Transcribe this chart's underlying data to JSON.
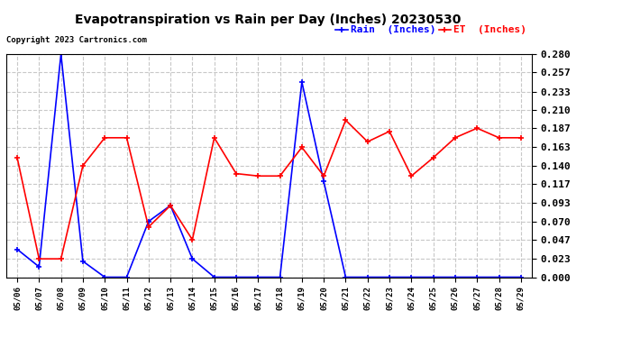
{
  "title": "Evapotranspiration vs Rain per Day (Inches) 20230530",
  "copyright": "Copyright 2023 Cartronics.com",
  "legend_rain": "Rain  (Inches)",
  "legend_et": "ET  (Inches)",
  "dates": [
    "05/06",
    "05/07",
    "05/08",
    "05/09",
    "05/10",
    "05/11",
    "05/12",
    "05/13",
    "05/14",
    "05/15",
    "05/16",
    "05/17",
    "05/18",
    "05/19",
    "05/20",
    "05/21",
    "05/22",
    "05/23",
    "05/24",
    "05/25",
    "05/26",
    "05/27",
    "05/28",
    "05/29"
  ],
  "rain": [
    0.035,
    0.013,
    0.28,
    0.02,
    0.0,
    0.0,
    0.07,
    0.09,
    0.023,
    0.0,
    0.0,
    0.0,
    0.0,
    0.245,
    0.12,
    0.0,
    0.0,
    0.0,
    0.0,
    0.0,
    0.0,
    0.0,
    0.0,
    0.0
  ],
  "et": [
    0.15,
    0.023,
    0.023,
    0.14,
    0.175,
    0.175,
    0.063,
    0.09,
    0.047,
    0.175,
    0.13,
    0.127,
    0.127,
    0.163,
    0.127,
    0.197,
    0.17,
    0.183,
    0.127,
    0.15,
    0.175,
    0.187,
    0.175,
    0.175
  ],
  "rain_color": "#0000ff",
  "et_color": "#ff0000",
  "grid_color": "#c8c8c8",
  "bg_color": "#ffffff",
  "title_color": "#000000",
  "copyright_color": "#000000",
  "ylim_min": 0.0,
  "ylim_max": 0.28,
  "yticks": [
    0.0,
    0.023,
    0.047,
    0.07,
    0.093,
    0.117,
    0.14,
    0.163,
    0.187,
    0.21,
    0.233,
    0.257,
    0.28
  ]
}
